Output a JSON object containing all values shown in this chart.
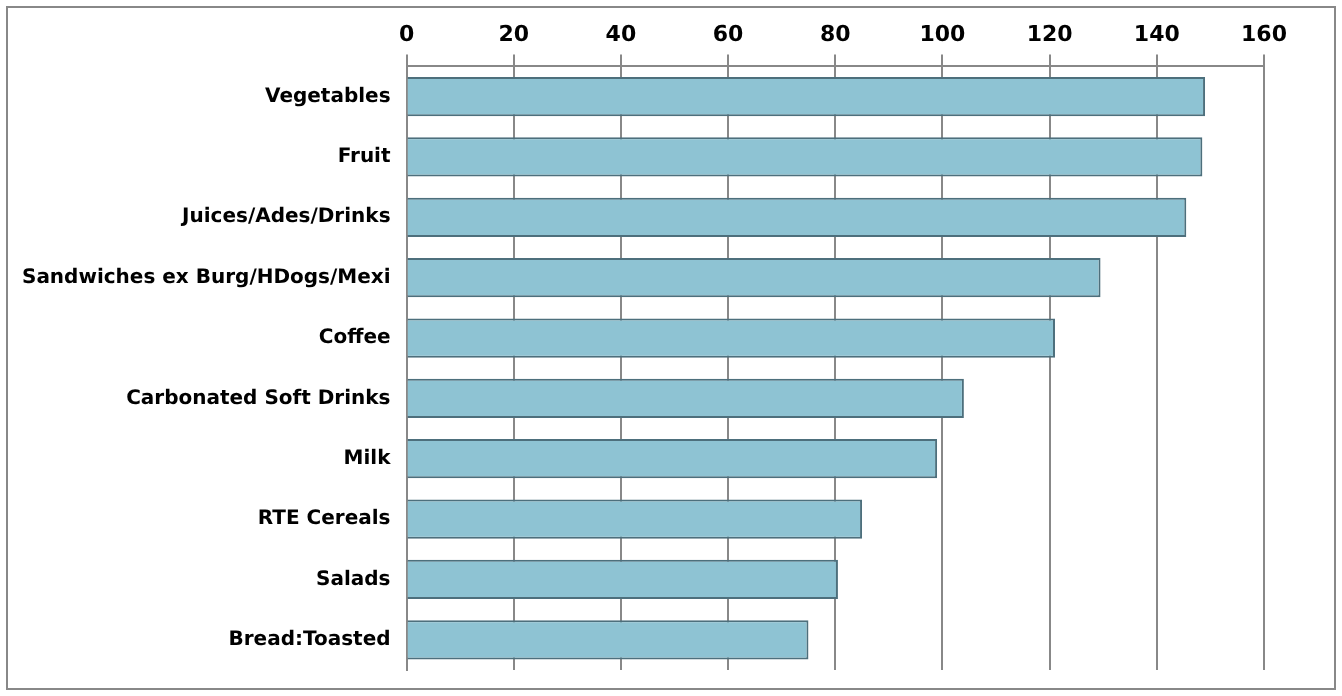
{
  "chart_data": {
    "type": "bar",
    "orientation": "horizontal",
    "categories": [
      "Vegetables",
      "Fruit",
      "Juices/Ades/Drinks",
      "Sandwiches ex Burg/HDogs/Mexi",
      "Coffee",
      "Carbonated Soft Drinks",
      "Milk",
      "RTE Cereals",
      "Salads",
      "Bread:Toasted"
    ],
    "values": [
      149,
      148.5,
      145.5,
      129.5,
      121,
      104,
      99,
      85,
      80.5,
      75
    ],
    "color": "#8ec3d3",
    "xlim": [
      0,
      160
    ],
    "xticks": [
      0,
      20,
      40,
      60,
      80,
      100,
      120,
      140,
      160
    ],
    "grid": "x",
    "legend": false
  }
}
